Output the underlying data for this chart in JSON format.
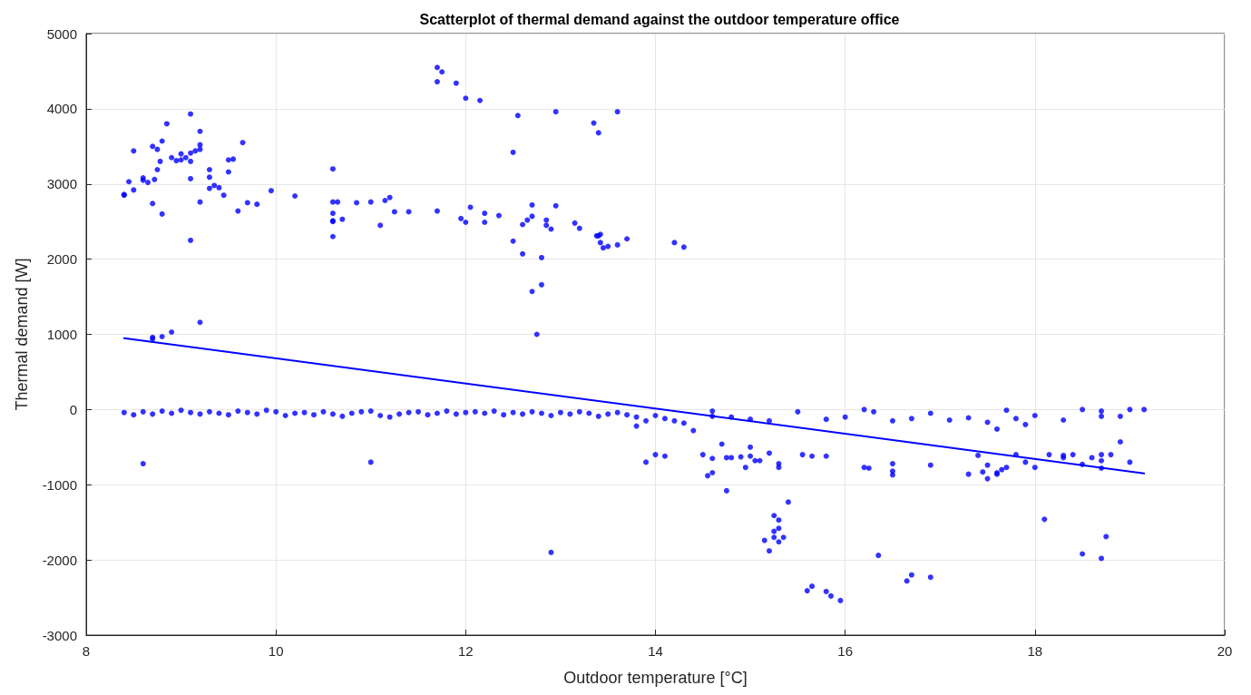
{
  "chart_data": {
    "type": "scatter",
    "title": "Scatterplot of thermal demand against the outdoor temperature office",
    "xlabel": "Outdoor temperature [°C]",
    "ylabel": "Thermal demand [W]",
    "xlim": [
      8,
      20
    ],
    "xticks": [
      8,
      10,
      12,
      14,
      16,
      18,
      20
    ],
    "ylim": [
      -3000,
      5000
    ],
    "yticks": [
      -3000,
      -2000,
      -1000,
      0,
      1000,
      2000,
      3000,
      4000,
      5000
    ],
    "grid": true,
    "marker": "circle",
    "series": [
      {
        "color": "#0000ff",
        "x": [
          8.4,
          8.4,
          8.45,
          8.5,
          8.5,
          8.6,
          8.6,
          8.65,
          8.7,
          8.7,
          8.72,
          8.75,
          8.75,
          8.78,
          8.8,
          8.8,
          8.85,
          8.9,
          8.95,
          9.0,
          9.0,
          9.05,
          9.1,
          9.1,
          9.1,
          9.1,
          9.1,
          9.15,
          9.2,
          9.2,
          9.2,
          9.2,
          9.3,
          9.3,
          9.3,
          9.35,
          9.4,
          9.45,
          9.5,
          9.5,
          9.55,
          9.6,
          9.65,
          9.7,
          9.8,
          9.95,
          10.2,
          10.6,
          10.6,
          10.6,
          10.6,
          10.6,
          10.6,
          10.65,
          10.7,
          10.85,
          11.0,
          11.1,
          11.15,
          11.2,
          11.25,
          11.4,
          11.7,
          11.7,
          11.7,
          11.75,
          11.9,
          11.95,
          12.0,
          12.0,
          12.05,
          12.15,
          12.2,
          12.2,
          12.35,
          12.5,
          12.55,
          12.5,
          12.6,
          12.6,
          12.65,
          12.7,
          12.7,
          12.7,
          12.75,
          12.8,
          12.8,
          12.85,
          12.85,
          12.9,
          12.95,
          12.95,
          13.15,
          13.2,
          13.35,
          13.38,
          13.4,
          13.4,
          13.42,
          13.42,
          13.45,
          13.5,
          13.6,
          13.6,
          13.7,
          14.2,
          14.3,
          8.7,
          8.7,
          8.8,
          8.9,
          9.2,
          8.6,
          11.0,
          12.9,
          8.4,
          8.5,
          8.6,
          8.7,
          8.8,
          8.9,
          9.0,
          9.1,
          9.2,
          9.3,
          9.4,
          9.5,
          9.6,
          9.7,
          9.8,
          9.9,
          10.0,
          10.1,
          10.2,
          10.3,
          10.4,
          10.5,
          10.6,
          10.7,
          10.8,
          10.9,
          11.0,
          11.1,
          11.2,
          11.3,
          11.4,
          11.5,
          11.6,
          11.7,
          11.8,
          11.9,
          12.0,
          12.1,
          12.2,
          12.3,
          12.4,
          12.5,
          12.6,
          12.7,
          12.8,
          12.9,
          13.0,
          13.1,
          13.2,
          13.3,
          13.4,
          13.5,
          13.6,
          13.7,
          13.8,
          13.9,
          14.0,
          13.8,
          13.9,
          14.0,
          14.1,
          14.1,
          14.2,
          14.3,
          14.4,
          14.5,
          14.55,
          14.6,
          14.6,
          14.7,
          14.75,
          14.75,
          14.8,
          14.9,
          14.95,
          15.0,
          15.0,
          15.05,
          15.1,
          15.2,
          15.3,
          15.3,
          15.15,
          15.2,
          15.25,
          15.25,
          15.3,
          15.35,
          15.3,
          15.3,
          15.25,
          15.4,
          15.55,
          15.65,
          15.8,
          15.6,
          15.65,
          15.8,
          15.85,
          15.95,
          16.2,
          16.25,
          16.35,
          16.5,
          16.5,
          16.5,
          16.65,
          16.7,
          16.9,
          16.9,
          17.3,
          17.4,
          17.45,
          17.5,
          17.5,
          17.6,
          17.6,
          17.65,
          17.7,
          17.8,
          17.9,
          18.0,
          18.1,
          18.15,
          18.3,
          18.3,
          18.4,
          18.5,
          18.5,
          18.6,
          18.7,
          18.7,
          18.7,
          18.7,
          18.75,
          18.8,
          18.9,
          19.0,
          14.6,
          14.6,
          14.8,
          15.0,
          15.2,
          15.5,
          15.8,
          16.0,
          16.2,
          16.3,
          16.5,
          16.7,
          16.9,
          17.1,
          17.3,
          17.5,
          17.6,
          17.7,
          17.8,
          17.9,
          18.0,
          18.3,
          18.5,
          18.7,
          18.7,
          18.9,
          19.0,
          19.15
        ],
        "values": [
          2860,
          2850,
          3030,
          3440,
          2920,
          3080,
          3050,
          3020,
          3500,
          2740,
          3060,
          3460,
          3190,
          3300,
          3570,
          2600,
          3800,
          3350,
          3310,
          3400,
          3320,
          3350,
          3930,
          3410,
          3300,
          3070,
          2250,
          3440,
          3700,
          3520,
          3460,
          2760,
          3190,
          3090,
          2940,
          2980,
          2950,
          2850,
          3320,
          3160,
          3330,
          2640,
          3550,
          2750,
          2730,
          2910,
          2840,
          3200,
          2760,
          2610,
          2510,
          2500,
          2300,
          2760,
          2530,
          2750,
          2760,
          2450,
          2780,
          2820,
          2630,
          2630,
          2640,
          4360,
          4550,
          4490,
          4340,
          2540,
          4140,
          2490,
          2690,
          4110,
          2610,
          2490,
          2580,
          3420,
          3910,
          2240,
          2070,
          2460,
          2520,
          2570,
          2720,
          1570,
          1000,
          2020,
          1660,
          2450,
          2520,
          2400,
          3960,
          2710,
          2480,
          2410,
          3810,
          2310,
          2310,
          3680,
          2330,
          2220,
          2150,
          2170,
          3960,
          2190,
          2270,
          2220,
          2160,
          960,
          940,
          970,
          1030,
          1160,
          -720,
          -700,
          -1900,
          -40,
          -70,
          -30,
          -60,
          -20,
          -50,
          -10,
          -40,
          -60,
          -30,
          -50,
          -70,
          -20,
          -40,
          -60,
          -10,
          -30,
          -80,
          -50,
          -40,
          -70,
          -30,
          -60,
          -90,
          -50,
          -30,
          -20,
          -80,
          -100,
          -60,
          -40,
          -30,
          -70,
          -50,
          -20,
          -60,
          -40,
          -30,
          -50,
          -20,
          -70,
          -40,
          -60,
          -30,
          -50,
          -80,
          -40,
          -60,
          -30,
          -50,
          -90,
          -60,
          -40,
          -70,
          -100,
          -150,
          -80,
          -220,
          -700,
          -600,
          -620,
          -120,
          -150,
          -180,
          -280,
          -600,
          -880,
          -840,
          -650,
          -460,
          -640,
          -1080,
          -640,
          -630,
          -770,
          -620,
          -500,
          -680,
          -680,
          -580,
          -770,
          -720,
          -1740,
          -1880,
          -1700,
          -1620,
          -1760,
          -1700,
          -1580,
          -1470,
          -1410,
          -1230,
          -600,
          -620,
          -620,
          -2410,
          -2350,
          -2420,
          -2480,
          -2540,
          -770,
          -780,
          -1940,
          -720,
          -820,
          -870,
          -2280,
          -2200,
          -740,
          -2230,
          -860,
          -610,
          -830,
          -920,
          -740,
          -860,
          -840,
          -800,
          -770,
          -600,
          -700,
          -770,
          -1460,
          -600,
          -640,
          -610,
          -600,
          -1920,
          -730,
          -640,
          -600,
          -680,
          -780,
          -1980,
          -1690,
          -600,
          -430,
          -700,
          -20,
          -90,
          -100,
          -130,
          -150,
          -30,
          -130,
          -100,
          0,
          -30,
          -150,
          -120,
          -50,
          -140,
          -110,
          -170,
          -260,
          -10,
          -120,
          -200,
          -80,
          -140,
          0,
          -20,
          -90,
          -90,
          0,
          0
        ]
      },
      {
        "type": "line",
        "color": "#0000ff",
        "marker": "none",
        "x": [
          8.4,
          19.15
        ],
        "values": [
          950,
          -850
        ]
      }
    ]
  }
}
